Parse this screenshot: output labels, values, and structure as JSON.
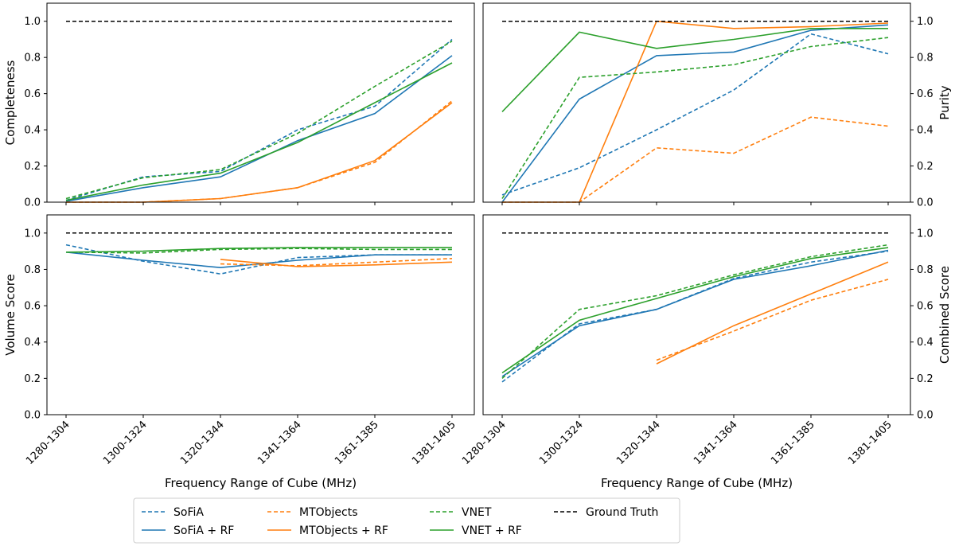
{
  "chart_data": {
    "type": "line",
    "categories": [
      "1280-1304",
      "1300-1324",
      "1320-1344",
      "1341-1364",
      "1361-1385",
      "1381-1405"
    ],
    "xlabel": "Frequency Range of Cube (MHz)",
    "ylim": [
      0,
      1.1
    ],
    "yticks": [
      "0.0",
      "0.2",
      "0.4",
      "0.6",
      "0.8",
      "1.0"
    ],
    "colors": {
      "sofia": "#1f77b4",
      "mtobjects": "#ff7f0e",
      "vnet": "#2ca02c",
      "truth": "#000000"
    },
    "legend": [
      {
        "key": "sofia",
        "label": "SoFiA",
        "color": "#1f77b4",
        "dashed": true
      },
      {
        "key": "sofia_rf",
        "label": "SoFiA + RF",
        "color": "#1f77b4",
        "dashed": false
      },
      {
        "key": "mto",
        "label": "MTObjects",
        "color": "#ff7f0e",
        "dashed": true
      },
      {
        "key": "mto_rf",
        "label": "MTObjects + RF",
        "color": "#ff7f0e",
        "dashed": false
      },
      {
        "key": "vnet",
        "label": "VNET",
        "color": "#2ca02c",
        "dashed": true
      },
      {
        "key": "vnet_rf",
        "label": "VNET + RF",
        "color": "#2ca02c",
        "dashed": false
      },
      {
        "key": "truth",
        "label": "Ground Truth",
        "color": "#000000",
        "dashed": true
      }
    ],
    "panels": [
      {
        "name": "completeness",
        "ylabel": "Completeness",
        "series": {
          "sofia": [
            0.01,
            0.14,
            0.17,
            0.4,
            0.53,
            0.9
          ],
          "sofia_rf": [
            0.005,
            0.08,
            0.14,
            0.34,
            0.49,
            0.81
          ],
          "mto": [
            0.0,
            0.0,
            0.02,
            0.08,
            0.22,
            0.56
          ],
          "mto_rf": [
            0.0,
            0.0,
            0.02,
            0.08,
            0.23,
            0.55
          ],
          "vnet": [
            0.02,
            0.135,
            0.18,
            0.38,
            0.64,
            0.89
          ],
          "vnet_rf": [
            0.01,
            0.095,
            0.16,
            0.33,
            0.55,
            0.77
          ],
          "truth": [
            1.0,
            1.0,
            1.0,
            1.0,
            1.0,
            1.0
          ]
        }
      },
      {
        "name": "purity",
        "ylabel": "Purity",
        "series": {
          "sofia": [
            0.04,
            0.19,
            0.4,
            0.62,
            0.93,
            0.82
          ],
          "sofia_rf": [
            0.0,
            0.57,
            0.81,
            0.83,
            0.95,
            0.98
          ],
          "mto": [
            0.0,
            0.0,
            0.3,
            0.27,
            0.47,
            0.42
          ],
          "mto_rf": [
            0.0,
            0.0,
            1.0,
            0.96,
            0.97,
            0.99
          ],
          "vnet": [
            0.02,
            0.69,
            0.72,
            0.76,
            0.86,
            0.91
          ],
          "vnet_rf": [
            0.5,
            0.94,
            0.85,
            0.9,
            0.96,
            0.96
          ],
          "truth": [
            1.0,
            1.0,
            1.0,
            1.0,
            1.0,
            1.0
          ]
        }
      },
      {
        "name": "volume",
        "ylabel": "Volume Score",
        "series": {
          "sofia": [
            0.935,
            0.845,
            0.775,
            0.865,
            0.88,
            0.88
          ],
          "sofia_rf": [
            0.895,
            0.85,
            0.81,
            0.85,
            0.88,
            0.88
          ],
          "mto": [
            null,
            null,
            0.83,
            0.82,
            0.84,
            0.86
          ],
          "mto_rf": [
            null,
            null,
            0.855,
            0.815,
            0.825,
            0.84
          ],
          "vnet": [
            0.895,
            0.89,
            0.91,
            0.915,
            0.91,
            0.91
          ],
          "vnet_rf": [
            0.895,
            0.9,
            0.915,
            0.92,
            0.92,
            0.92
          ],
          "truth": [
            1.0,
            1.0,
            1.0,
            1.0,
            1.0,
            1.0
          ]
        }
      },
      {
        "name": "combined",
        "ylabel": "Combined Score",
        "series": {
          "sofia": [
            0.18,
            0.5,
            0.58,
            0.75,
            0.84,
            0.9
          ],
          "sofia_rf": [
            0.21,
            0.49,
            0.58,
            0.745,
            0.82,
            0.905
          ],
          "mto": [
            null,
            null,
            0.3,
            0.46,
            0.63,
            0.745
          ],
          "mto_rf": [
            null,
            null,
            0.28,
            0.49,
            0.665,
            0.84
          ],
          "vnet": [
            0.2,
            0.58,
            0.655,
            0.77,
            0.87,
            0.935
          ],
          "vnet_rf": [
            0.23,
            0.52,
            0.64,
            0.76,
            0.86,
            0.92
          ],
          "truth": [
            1.0,
            1.0,
            1.0,
            1.0,
            1.0,
            1.0
          ]
        }
      }
    ]
  }
}
